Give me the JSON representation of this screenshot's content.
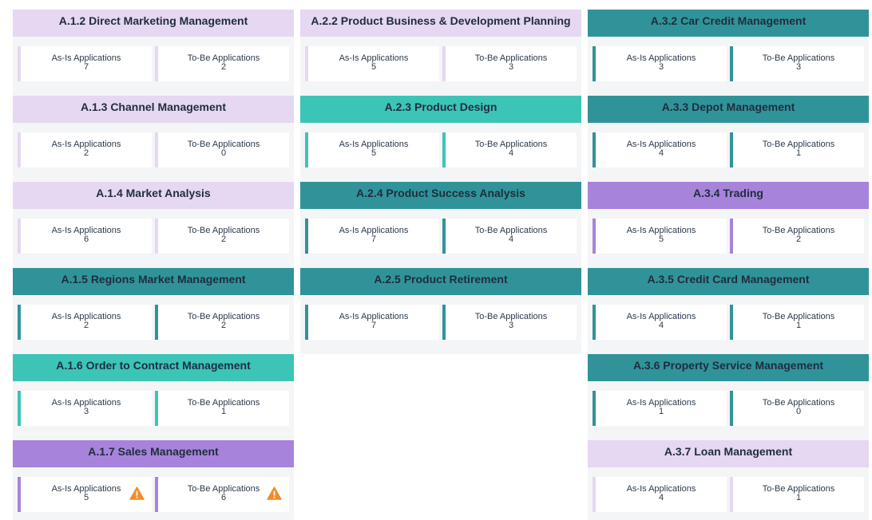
{
  "metric_labels": {
    "as_is": "As-Is Applications",
    "to_be": "To-Be Applications"
  },
  "colors": {
    "lavender": "#e6d7f3",
    "teal": "#31939a",
    "mint": "#3cc4b7",
    "purple": "#a883dc",
    "warning": "#f28c28"
  },
  "columns": [
    {
      "cards": [
        {
          "title": "A.1.2 Direct Marketing Management",
          "theme": "lavender",
          "as_is": "7",
          "to_be": "2",
          "warning": false
        },
        {
          "title": "A.1.3 Channel Management",
          "theme": "lavender",
          "as_is": "2",
          "to_be": "0",
          "warning": false
        },
        {
          "title": "A.1.4 Market Analysis",
          "theme": "lavender",
          "as_is": "6",
          "to_be": "2",
          "warning": false
        },
        {
          "title": "A.1.5 Regions Market Management",
          "theme": "teal",
          "as_is": "2",
          "to_be": "2",
          "warning": false
        },
        {
          "title": "A.1.6 Order to Contract Management",
          "theme": "mint",
          "as_is": "3",
          "to_be": "1",
          "warning": false
        },
        {
          "title": "A.1.7 Sales Management",
          "theme": "purple",
          "as_is": "5",
          "to_be": "6",
          "warning": true,
          "warning_icon": "warning-triangle-icon"
        }
      ]
    },
    {
      "cards": [
        {
          "title": "A.2.2 Product Business & Development Planning",
          "theme": "lavender",
          "as_is": "5",
          "to_be": "3",
          "warning": false
        },
        {
          "title": "A.2.3 Product Design",
          "theme": "mint",
          "as_is": "5",
          "to_be": "4",
          "warning": false
        },
        {
          "title": "A.2.4 Product Success Analysis",
          "theme": "teal",
          "as_is": "7",
          "to_be": "4",
          "warning": false
        },
        {
          "title": "A.2.5 Product Retirement",
          "theme": "teal",
          "as_is": "7",
          "to_be": "3",
          "warning": false
        }
      ]
    },
    {
      "cards": [
        {
          "title": "A.3.2 Car Credit Management",
          "theme": "teal",
          "as_is": "3",
          "to_be": "3",
          "warning": false
        },
        {
          "title": "A.3.3 Depot Management",
          "theme": "teal",
          "as_is": "4",
          "to_be": "1",
          "warning": false
        },
        {
          "title": "A.3.4 Trading",
          "theme": "purple",
          "as_is": "5",
          "to_be": "2",
          "warning": false
        },
        {
          "title": "A.3.5 Credit Card Management",
          "theme": "teal",
          "as_is": "4",
          "to_be": "1",
          "warning": false
        },
        {
          "title": "A.3.6 Property Service Management",
          "theme": "teal",
          "as_is": "1",
          "to_be": "0",
          "warning": false
        },
        {
          "title": "A.3.7 Loan Management",
          "theme": "lavender",
          "as_is": "4",
          "to_be": "1",
          "warning": false
        }
      ]
    }
  ]
}
